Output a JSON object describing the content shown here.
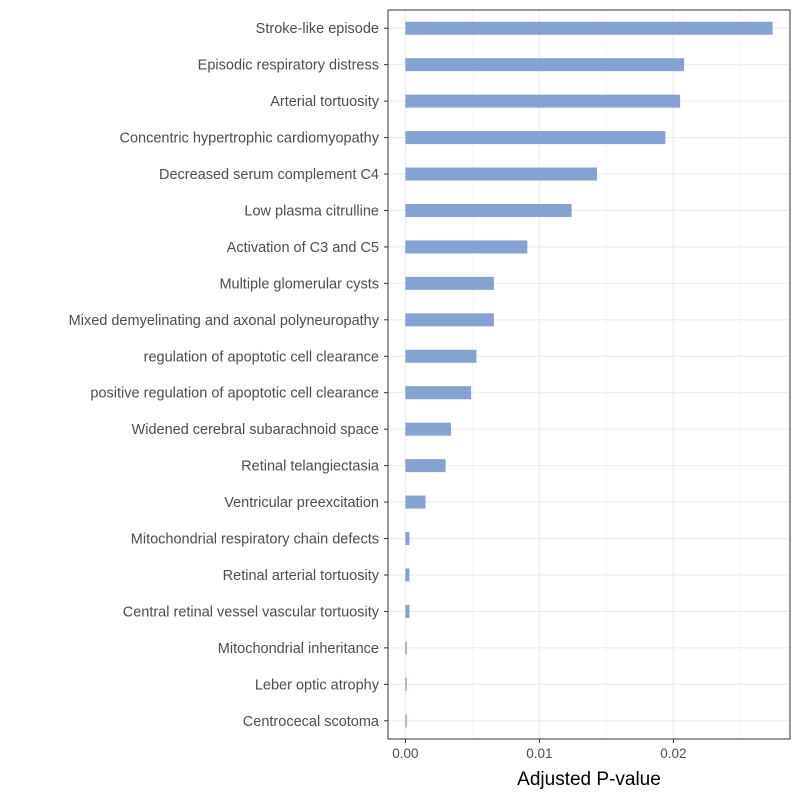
{
  "chart_data": {
    "type": "bar",
    "orientation": "horizontal",
    "title": "",
    "xlabel": "Adjusted P-value",
    "ylabel": "",
    "xlim": [
      -0.0013,
      0.0287
    ],
    "x_ticks": [
      0,
      0.01,
      0.02
    ],
    "x_tick_labels": [
      "0.00",
      "0.01",
      "0.02"
    ],
    "grid": true,
    "legend": "none",
    "bar_color": "#7092c8",
    "categories": [
      "Stroke-like episode",
      "Episodic respiratory distress",
      "Arterial tortuosity",
      "Concentric hypertrophic cardiomyopathy",
      "Decreased serum complement C4",
      "Low plasma citrulline",
      "Activation of C3 and C5",
      "Multiple glomerular cysts",
      "Mixed demyelinating and axonal polyneuropathy",
      "regulation of apoptotic cell clearance",
      "positive regulation of apoptotic cell clearance",
      "Widened cerebral subarachnoid space",
      "Retinal telangiectasia",
      "Ventricular preexcitation",
      "Mitochondrial respiratory chain defects",
      "Retinal arterial tortuosity",
      "Central retinal vessel vascular tortuosity",
      "Mitochondrial inheritance",
      "Leber optic atrophy",
      "Centrocecal scotoma"
    ],
    "values": [
      0.0274,
      0.0208,
      0.0205,
      0.0194,
      0.0143,
      0.0124,
      0.0091,
      0.0066,
      0.0066,
      0.0053,
      0.0049,
      0.0034,
      0.003,
      0.0015,
      0.0003,
      0.0003,
      0.0003,
      0.0001,
      0.0001,
      0.0001
    ]
  }
}
